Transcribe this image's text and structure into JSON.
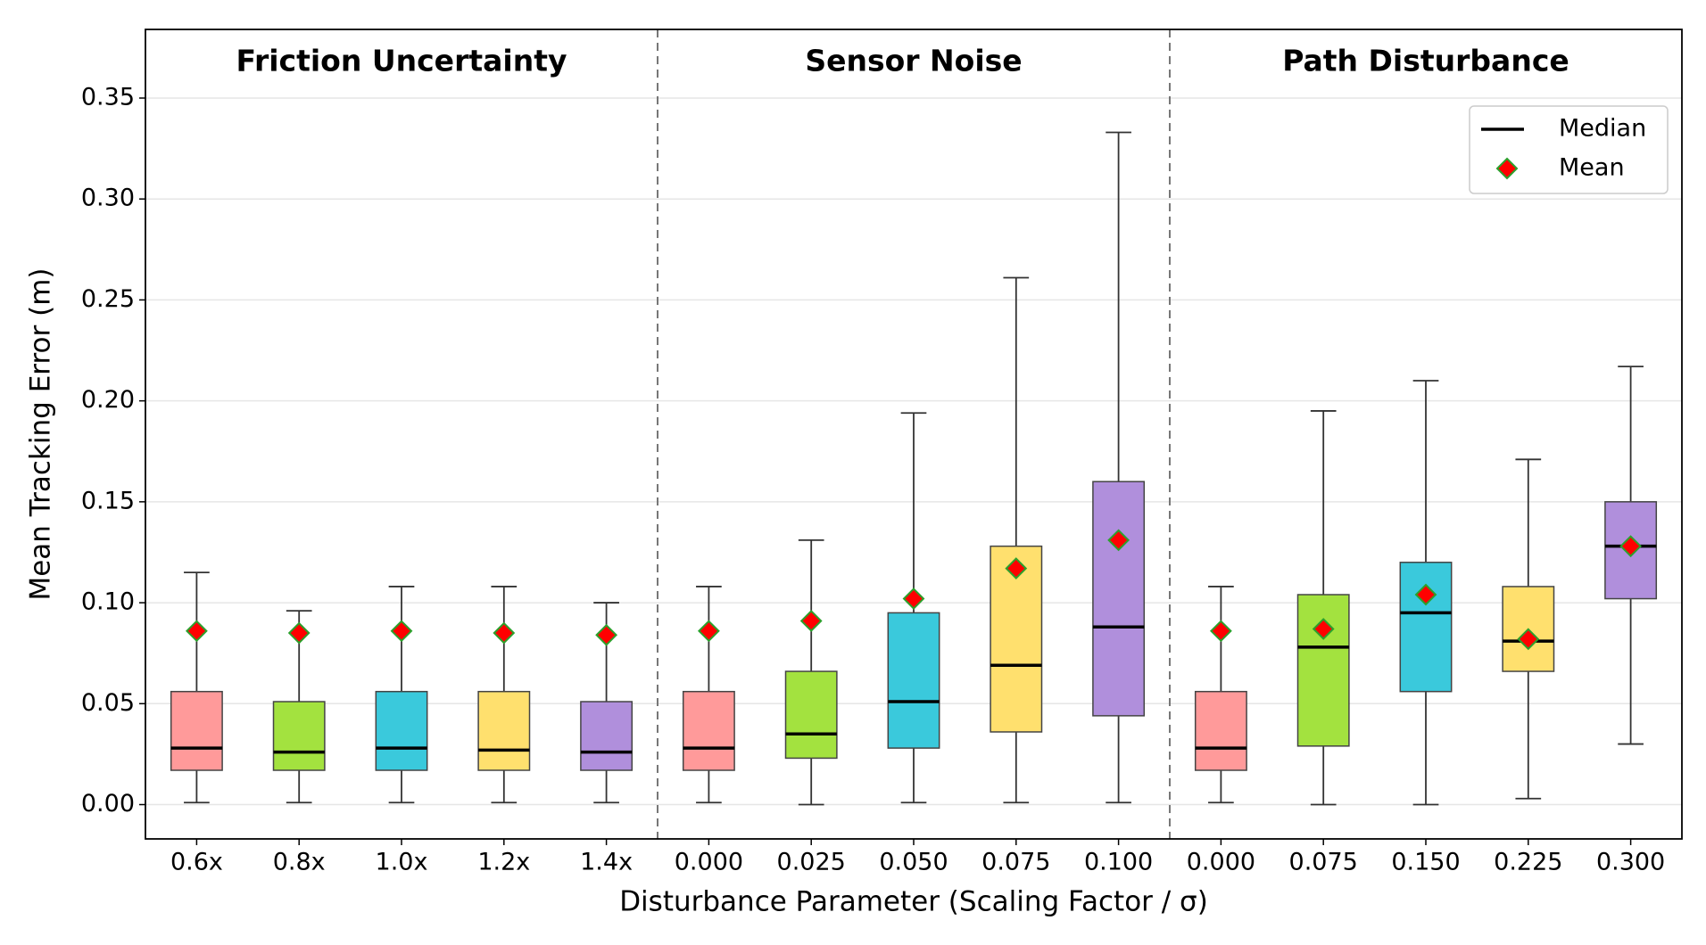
{
  "chart_data": {
    "type": "box",
    "xlabel": "Disturbance Parameter (Scaling Factor / σ)",
    "ylabel": "Mean Tracking Error (m)",
    "ylim": [
      -0.017,
      0.384
    ],
    "yticks": [
      {
        "value": 0,
        "label": "0.00"
      },
      {
        "value": 0.05,
        "label": "0.05"
      },
      {
        "value": 0.1,
        "label": "0.10"
      },
      {
        "value": 0.15,
        "label": "0.15"
      },
      {
        "value": 0.2,
        "label": "0.20"
      },
      {
        "value": 0.25,
        "label": "0.25"
      },
      {
        "value": 0.3,
        "label": "0.30"
      },
      {
        "value": 0.35,
        "label": "0.35"
      }
    ],
    "grid": true,
    "colors": [
      "#ff9a9a",
      "#a3e23f",
      "#3ac9dc",
      "#ffe06e",
      "#b08fdc"
    ],
    "median_color": "#000000",
    "mean_color": "#ff0000",
    "mean_edge": "#2ca02c",
    "legend": {
      "loc": "upper right",
      "median": "Median",
      "mean": "Mean"
    },
    "groups": [
      {
        "title": "Friction Uncertainty",
        "categories": [
          "0.6x",
          "0.8x",
          "1.0x",
          "1.2x",
          "1.4x"
        ],
        "whislo": [
          0.001,
          0.001,
          0.001,
          0.001,
          0.001
        ],
        "q1": [
          0.017,
          0.017,
          0.017,
          0.017,
          0.017
        ],
        "med": [
          0.028,
          0.026,
          0.028,
          0.027,
          0.026
        ],
        "q3": [
          0.056,
          0.051,
          0.056,
          0.056,
          0.051
        ],
        "whishi": [
          0.115,
          0.096,
          0.108,
          0.108,
          0.1
        ],
        "mean": [
          0.086,
          0.085,
          0.086,
          0.085,
          0.084
        ]
      },
      {
        "title": "Sensor Noise",
        "categories": [
          "0.000",
          "0.025",
          "0.050",
          "0.075",
          "0.100"
        ],
        "whislo": [
          0.001,
          0.0,
          0.001,
          0.001,
          0.001
        ],
        "q1": [
          0.017,
          0.023,
          0.028,
          0.036,
          0.044
        ],
        "med": [
          0.028,
          0.035,
          0.051,
          0.069,
          0.088
        ],
        "q3": [
          0.056,
          0.066,
          0.095,
          0.128,
          0.16
        ],
        "whishi": [
          0.108,
          0.131,
          0.194,
          0.261,
          0.333
        ],
        "mean": [
          0.086,
          0.091,
          0.102,
          0.117,
          0.131
        ]
      },
      {
        "title": "Path Disturbance",
        "categories": [
          "0.000",
          "0.075",
          "0.150",
          "0.225",
          "0.300"
        ],
        "whislo": [
          0.001,
          0.0,
          0.0,
          0.003,
          0.03
        ],
        "q1": [
          0.017,
          0.029,
          0.056,
          0.066,
          0.102
        ],
        "med": [
          0.028,
          0.078,
          0.095,
          0.081,
          0.128
        ],
        "q3": [
          0.056,
          0.104,
          0.12,
          0.108,
          0.15
        ],
        "whishi": [
          0.108,
          0.195,
          0.21,
          0.171,
          0.217
        ],
        "mean": [
          0.086,
          0.087,
          0.104,
          0.082,
          0.128
        ]
      }
    ]
  }
}
